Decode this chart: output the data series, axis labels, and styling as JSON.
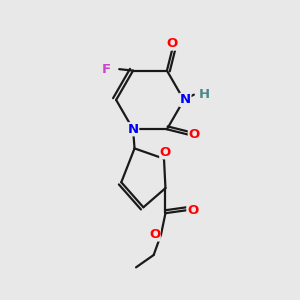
{
  "background_color": "#e8e8e8",
  "bond_color": "#1a1a1a",
  "atom_colors": {
    "O": "#ff0000",
    "N": "#0000ff",
    "F": "#cc44cc",
    "H": "#4a8888",
    "C": "#1a1a1a"
  },
  "figsize": [
    3.0,
    3.0
  ],
  "dpi": 100
}
